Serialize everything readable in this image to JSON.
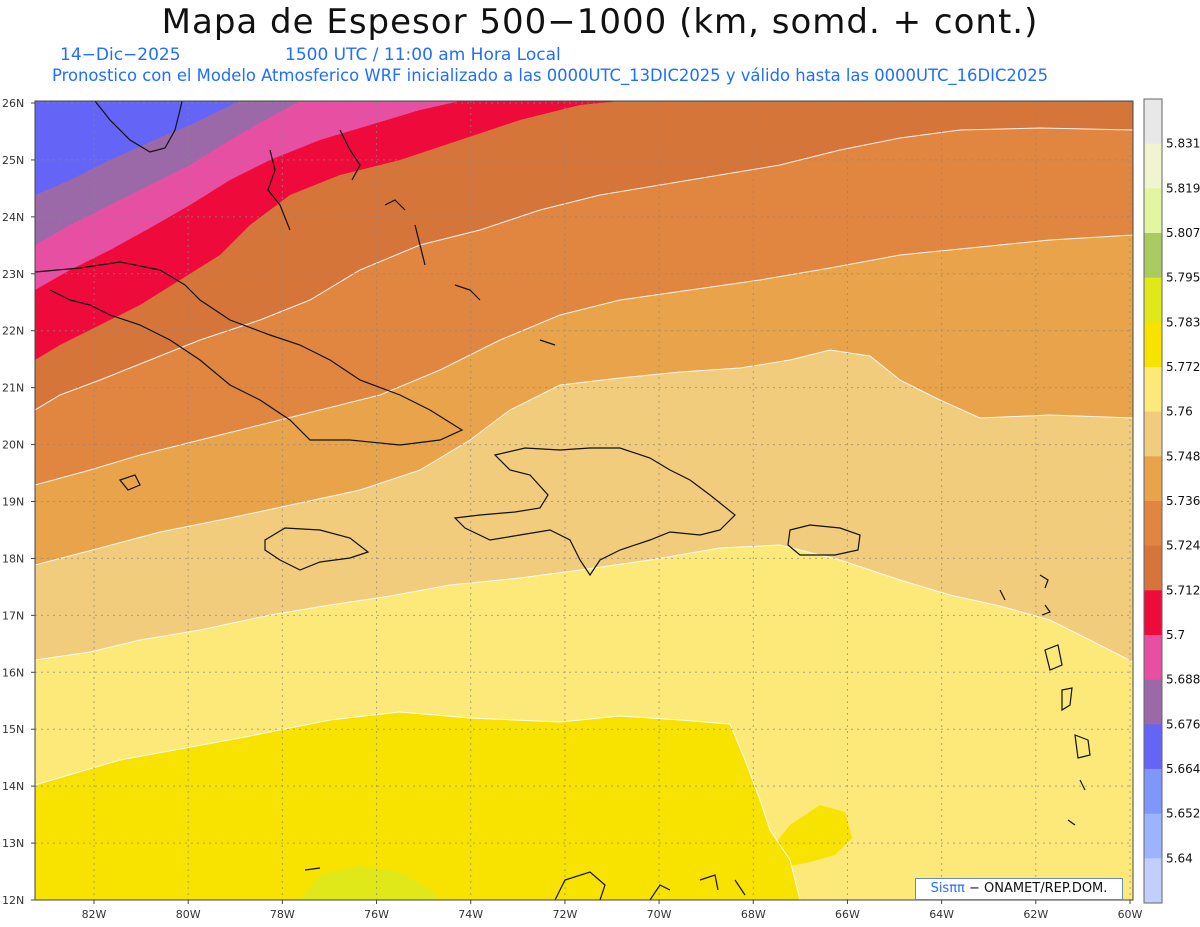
{
  "title": "Mapa de Espesor 500−1000 (km, somd. + cont.)",
  "subtitle": {
    "date": "14−Dic−2025",
    "time": "1500 UTC / 11:00 am Hora Local",
    "info": "Pronostico con el Modelo Atmosferico WRF inicializado a las 0000UTC_13DIC2025 y válido hasta las  0000UTC_16DIC2025"
  },
  "lat_labels": [
    "26N",
    "25N",
    "24N",
    "23N",
    "22N",
    "21N",
    "20N",
    "19N",
    "18N",
    "17N",
    "16N",
    "15N",
    "14N",
    "13N",
    "12N"
  ],
  "lon_labels": [
    "82W",
    "80W",
    "78W",
    "76W",
    "74W",
    "72W",
    "70W",
    "68W",
    "66W",
    "64W",
    "62W",
    "60W"
  ],
  "colorbar": {
    "labels": [
      "5.831",
      "5.819",
      "5.807",
      "5.795",
      "5.783",
      "5.772",
      "5.76",
      "5.748",
      "5.736",
      "5.724",
      "5.712",
      "5.7",
      "5.688",
      "5.676",
      "5.664",
      "5.652",
      "5.64"
    ],
    "colors": [
      "#e8e8e8",
      "#f0f5d0",
      "#e3f5a0",
      "#aacb60",
      "#e0e81a",
      "#f8e200",
      "#fde97a",
      "#f0cc7c",
      "#e9a34a",
      "#e08640",
      "#d67539",
      "#ee0b3c",
      "#e750a2",
      "#9b68a8",
      "#6465f6",
      "#7f96fb",
      "#9bb4fd",
      "#c1cffd"
    ]
  },
  "legend_colors": {
    "blue_dark": "#6465f6",
    "purple": "#9b68a8",
    "pink": "#e750a2",
    "red": "#ee0b3c",
    "orange_dark": "#d67539",
    "orange": "#e08640",
    "orange_light": "#e9a34a",
    "tan": "#f0cc7c",
    "yellow_light": "#fde97a",
    "yellow": "#f8e200",
    "green_yellow": "#e0e81a"
  },
  "credit": {
    "brand": "Sisππ",
    "text": "− ONAMET/REP.DOM."
  }
}
